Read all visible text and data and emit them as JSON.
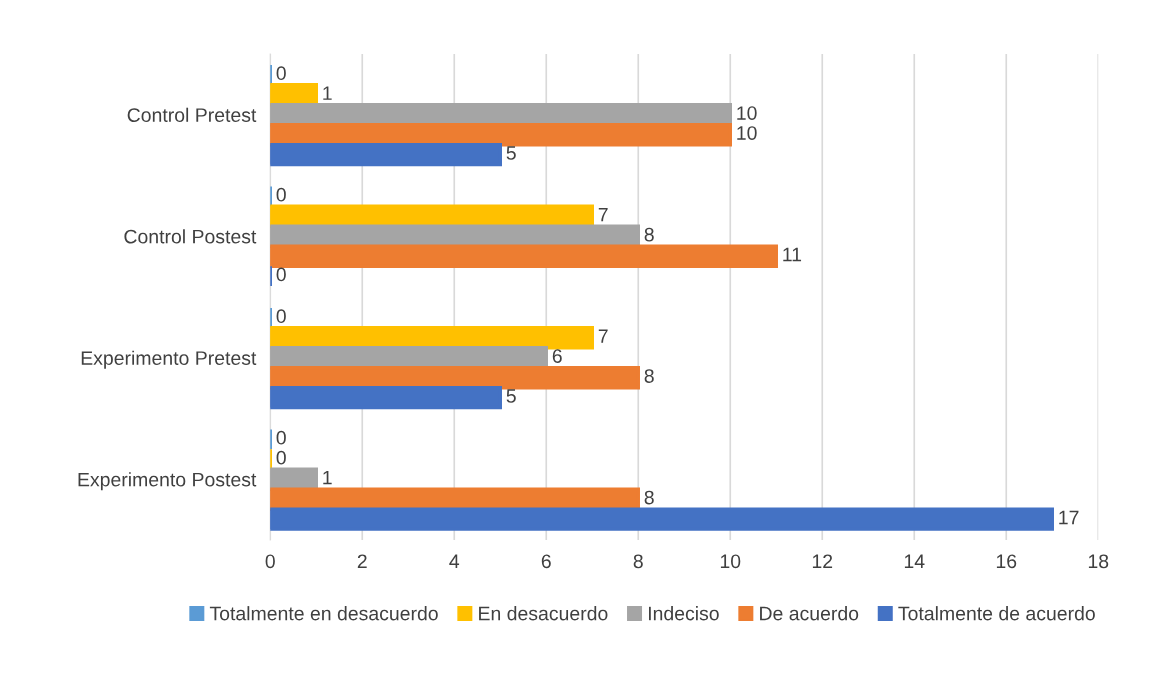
{
  "chart_data": {
    "type": "bar",
    "orientation": "horizontal",
    "categories": [
      "Control Pretest",
      "Control Postest",
      "Experimento Pretest",
      "Experimento Postest"
    ],
    "series": [
      {
        "name": "Totalmente en desacuerdo",
        "color": "#5b9bd5",
        "values": [
          0,
          0,
          0,
          0
        ]
      },
      {
        "name": "En desacuerdo",
        "color": "#ffc000",
        "values": [
          1,
          7,
          7,
          0
        ]
      },
      {
        "name": "Indeciso",
        "color": "#a5a5a5",
        "values": [
          10,
          8,
          6,
          1
        ]
      },
      {
        "name": "De acuerdo",
        "color": "#ed7d31",
        "values": [
          10,
          11,
          8,
          8
        ]
      },
      {
        "name": "Totalmente de acuerdo",
        "color": "#4472c4",
        "values": [
          5,
          0,
          5,
          17
        ]
      }
    ],
    "xlim": [
      0,
      18
    ],
    "xticks": [
      0,
      2,
      4,
      6,
      8,
      10,
      12,
      14,
      16,
      18
    ],
    "grid": "x",
    "legend": "bottom",
    "data_labels": true
  }
}
